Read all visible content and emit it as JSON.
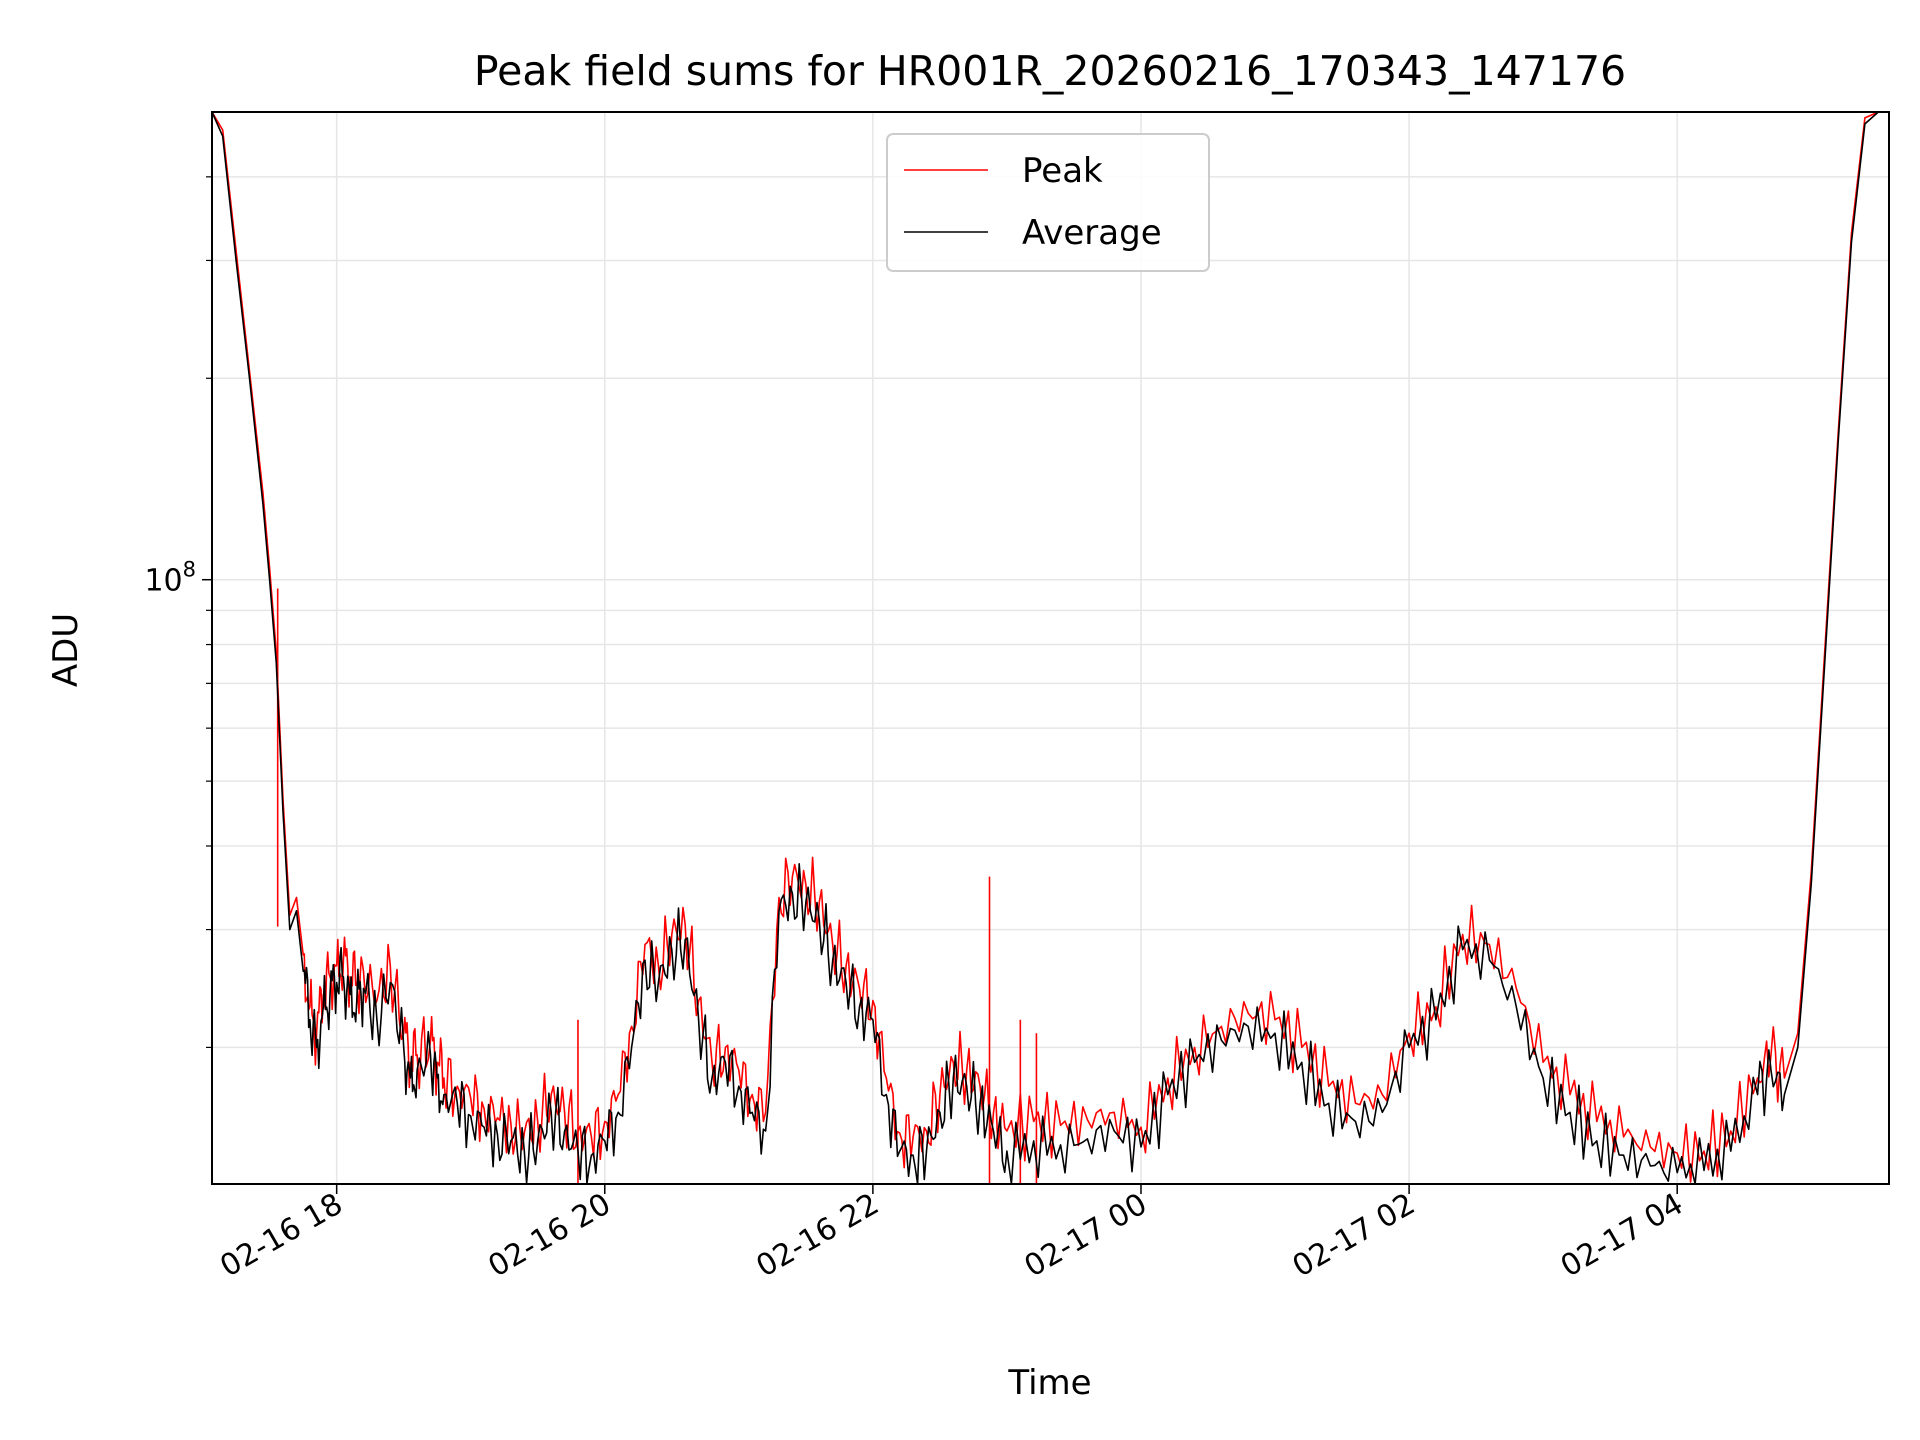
{
  "chart_data": {
    "type": "line",
    "title": "Peak field sums for HR001R_20260216_170343_147176",
    "xlabel": "Time",
    "ylabel": "ADU",
    "y_scale": "log",
    "ylim": [
      12500000,
      500000000
    ],
    "xlim_hours": [
      17.07,
      29.58
    ],
    "x_ticks": [
      {
        "hour": 18,
        "label": "02-16 18"
      },
      {
        "hour": 20,
        "label": "02-16 20"
      },
      {
        "hour": 22,
        "label": "02-16 22"
      },
      {
        "hour": 24,
        "label": "02-17 00"
      },
      {
        "hour": 26,
        "label": "02-17 02"
      },
      {
        "hour": 28,
        "label": "02-17 04"
      }
    ],
    "y_major_ticks": [
      {
        "value": 100000000,
        "base": "10",
        "exponent": "8"
      }
    ],
    "y_minor_ticks": [
      20000000,
      30000000,
      40000000,
      50000000,
      60000000,
      70000000,
      80000000,
      90000000,
      200000000,
      300000000,
      400000000
    ],
    "grid": true,
    "legend_position": "top-center",
    "series": [
      {
        "name": "Average",
        "color": "#000000",
        "x_hours": [
          17.07,
          17.15,
          17.25,
          17.35,
          17.45,
          17.5,
          17.55,
          17.6,
          17.65,
          17.7,
          17.75,
          17.8,
          17.85,
          17.9,
          17.95,
          18.0,
          18.05,
          18.1,
          18.15,
          18.2,
          18.3,
          18.4,
          18.5,
          18.55,
          18.6,
          18.7,
          18.75,
          18.8,
          18.9,
          19.0,
          19.1,
          19.2,
          19.3,
          19.4,
          19.5,
          19.6,
          19.7,
          19.8,
          19.9,
          20.0,
          20.1,
          20.2,
          20.3,
          20.4,
          20.5,
          20.6,
          20.7,
          20.8,
          20.9,
          21.0,
          21.1,
          21.2,
          21.3,
          21.4,
          21.5,
          21.6,
          21.7,
          21.8,
          21.9,
          22.0,
          22.1,
          22.2,
          22.3,
          22.4,
          22.5,
          22.6,
          22.7,
          22.8,
          22.9,
          23.0,
          23.2,
          23.4,
          23.6,
          23.8,
          24.0,
          24.2,
          24.4,
          24.6,
          24.8,
          25.0,
          25.2,
          25.4,
          25.6,
          25.8,
          26.0,
          26.2,
          26.4,
          26.6,
          26.8,
          27.0,
          27.2,
          27.4,
          27.6,
          27.8,
          28.0,
          28.2,
          28.4,
          28.6,
          28.7,
          28.8,
          28.9,
          29.0,
          29.1,
          29.2,
          29.3,
          29.4,
          29.5,
          29.58
        ],
        "values": [
          500000000,
          460000000,
          300000000,
          200000000,
          130000000,
          100000000,
          75000000,
          45000000,
          30000000,
          32000000,
          26000000,
          22000000,
          20000000,
          23000000,
          24000000,
          25000000,
          25500000,
          24000000,
          23500000,
          24500000,
          22000000,
          25000000,
          20000000,
          18000000,
          18500000,
          19500000,
          18000000,
          17000000,
          16500000,
          15800000,
          15200000,
          14800000,
          14500000,
          14000000,
          14500000,
          16000000,
          15000000,
          14000000,
          13800000,
          14500000,
          16000000,
          20000000,
          27000000,
          25000000,
          28000000,
          29000000,
          22000000,
          18000000,
          19000000,
          17500000,
          16000000,
          15000000,
          32000000,
          34000000,
          33000000,
          31000000,
          27000000,
          25000000,
          23000000,
          22000000,
          17000000,
          14000000,
          13800000,
          14000000,
          16000000,
          18000000,
          17500000,
          16500000,
          15000000,
          14000000,
          14500000,
          14300000,
          14600000,
          15000000,
          14200000,
          17000000,
          19000000,
          20500000,
          21500000,
          21000000,
          19000000,
          16500000,
          15500000,
          16000000,
          20000000,
          22000000,
          28000000,
          27000000,
          23000000,
          18000000,
          16000000,
          14500000,
          13800000,
          13300000,
          13000000,
          13100000,
          14000000,
          17000000,
          18500000,
          17000000,
          20000000,
          35000000,
          75000000,
          160000000,
          320000000,
          480000000,
          500000000,
          500000000
        ]
      },
      {
        "name": "Peak",
        "color": "#ff0000",
        "x_hours": [
          17.07,
          17.15,
          17.25,
          17.35,
          17.45,
          17.5,
          17.55,
          17.6,
          17.65,
          17.7,
          17.75,
          17.8,
          17.85,
          17.9,
          17.95,
          18.0,
          18.05,
          18.1,
          18.15,
          18.2,
          18.3,
          18.4,
          18.5,
          18.55,
          18.6,
          18.7,
          18.75,
          18.8,
          18.9,
          19.0,
          19.1,
          19.2,
          19.3,
          19.4,
          19.5,
          19.6,
          19.7,
          19.8,
          19.9,
          20.0,
          20.1,
          20.2,
          20.3,
          20.4,
          20.5,
          20.6,
          20.7,
          20.8,
          20.9,
          21.0,
          21.1,
          21.2,
          21.3,
          21.4,
          21.5,
          21.6,
          21.7,
          21.8,
          21.9,
          22.0,
          22.1,
          22.2,
          22.3,
          22.4,
          22.5,
          22.6,
          22.7,
          22.8,
          22.9,
          23.0,
          23.2,
          23.4,
          23.6,
          23.8,
          24.0,
          24.2,
          24.4,
          24.6,
          24.8,
          25.0,
          25.2,
          25.4,
          25.6,
          25.8,
          26.0,
          26.2,
          26.4,
          26.6,
          26.8,
          27.0,
          27.2,
          27.4,
          27.6,
          27.8,
          28.0,
          28.2,
          28.4,
          28.6,
          28.7,
          28.8,
          28.9,
          29.0,
          29.1,
          29.2,
          29.3,
          29.4,
          29.5,
          29.58
        ],
        "values": [
          500000000,
          470000000,
          310000000,
          205000000,
          135000000,
          104000000,
          78000000,
          47000000,
          31500000,
          33500000,
          27500000,
          23000000,
          21000000,
          24000000,
          25500000,
          26500000,
          27000000,
          25500000,
          25000000,
          26000000,
          23500000,
          26500000,
          21000000,
          19000000,
          19500000,
          20500000,
          19000000,
          18000000,
          17500000,
          16800000,
          16200000,
          15700000,
          15400000,
          14900000,
          15500000,
          17000000,
          16000000,
          15000000,
          14700000,
          15500000,
          17000000,
          21500000,
          28500000,
          26500000,
          29500000,
          30500000,
          23500000,
          19000000,
          20000000,
          18500000,
          17000000,
          16000000,
          33500000,
          36000000,
          35000000,
          33000000,
          28500000,
          26500000,
          24500000,
          23500000,
          18000000,
          14900000,
          14700000,
          15000000,
          17000000,
          19000000,
          18500000,
          17500000,
          16000000,
          15000000,
          15500000,
          15300000,
          15600000,
          16000000,
          15200000,
          18000000,
          20000000,
          21500000,
          22500000,
          22000000,
          20000000,
          17500000,
          16500000,
          17000000,
          21000000,
          23000000,
          29500000,
          28500000,
          24500000,
          19000000,
          17000000,
          15500000,
          14700000,
          14200000,
          13900000,
          14000000,
          15000000,
          18000000,
          19500000,
          18000000,
          21000000,
          36500000,
          78000000,
          165000000,
          330000000,
          490000000,
          500000000,
          500000000
        ],
        "spikes": [
          {
            "hour": 17.56,
            "value": 97000000
          },
          {
            "hour": 22.87,
            "value": 36000000
          },
          {
            "hour": 23.1,
            "value": 22000000
          },
          {
            "hour": 23.22,
            "value": 21000000
          },
          {
            "hour": 19.8,
            "value": 22000000
          }
        ]
      }
    ]
  }
}
